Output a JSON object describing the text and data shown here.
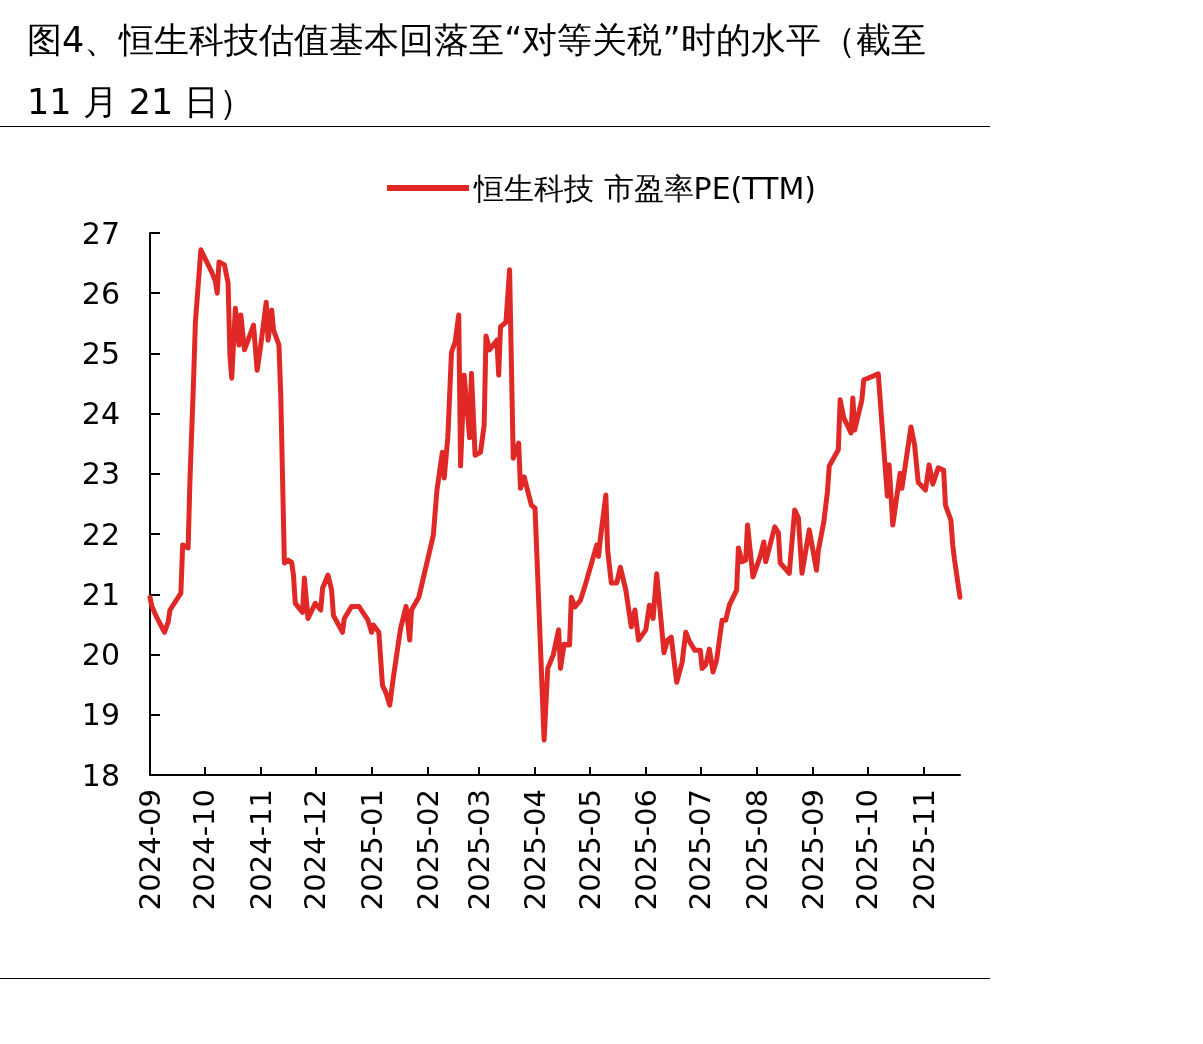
{
  "chart_data": {
    "type": "line",
    "title": "图4、恒生科技估值基本回落至“对等关税”时的水平（截至 11 月 21 日）",
    "x": [
      "2024-09-01",
      "2024-09-02",
      "2024-09-05",
      "2024-09-09",
      "2024-09-11",
      "2024-09-12",
      "2024-09-18",
      "2024-09-19",
      "2024-09-22",
      "2024-09-23",
      "2024-09-25",
      "2024-09-26",
      "2024-09-29",
      "2024-10-05",
      "2024-10-07",
      "2024-10-08",
      "2024-10-09",
      "2024-10-12",
      "2024-10-14",
      "2024-10-15",
      "2024-10-16",
      "2024-10-18",
      "2024-10-20",
      "2024-10-21",
      "2024-10-23",
      "2024-10-25",
      "2024-10-28",
      "2024-10-30",
      "2024-11-01",
      "2024-11-04",
      "2024-11-05",
      "2024-11-07",
      "2024-11-08",
      "2024-11-11",
      "2024-11-12",
      "2024-11-14",
      "2024-11-16",
      "2024-11-18",
      "2024-11-19",
      "2024-11-20",
      "2024-11-24",
      "2024-11-25",
      "2024-11-27",
      "2024-12-01",
      "2024-12-04",
      "2024-12-05",
      "2024-12-08",
      "2024-12-10",
      "2024-12-11",
      "2024-12-16",
      "2024-12-17",
      "2024-12-21",
      "2024-12-25",
      "2024-12-30",
      "2025-01-01",
      "2025-01-02",
      "2025-01-05",
      "2025-01-07",
      "2025-01-09",
      "2025-01-11",
      "2025-01-13",
      "2025-01-17",
      "2025-01-20",
      "2025-01-22",
      "2025-01-23",
      "2025-01-27",
      "2025-02-04",
      "2025-02-06",
      "2025-02-09",
      "2025-02-10",
      "2025-02-12",
      "2025-02-14",
      "2025-02-16",
      "2025-02-18",
      "2025-02-19",
      "2025-02-21",
      "2025-02-24",
      "2025-02-25",
      "2025-02-27",
      "2025-03-02",
      "2025-03-04",
      "2025-03-05",
      "2025-03-07",
      "2025-03-11",
      "2025-03-12",
      "2025-03-13",
      "2025-03-16",
      "2025-03-18",
      "2025-03-20",
      "2025-03-23",
      "2025-03-24",
      "2025-03-26",
      "2025-03-30",
      "2025-04-01",
      "2025-04-06",
      "2025-04-08",
      "2025-04-11",
      "2025-04-14",
      "2025-04-15",
      "2025-04-17",
      "2025-04-20",
      "2025-04-21",
      "2025-04-23",
      "2025-04-26",
      "2025-04-29",
      "2025-05-05",
      "2025-05-06",
      "2025-05-07",
      "2025-05-10",
      "2025-05-11",
      "2025-05-13",
      "2025-05-16",
      "2025-05-18",
      "2025-05-21",
      "2025-05-24",
      "2025-05-26",
      "2025-05-28",
      "2025-06-01",
      "2025-06-03",
      "2025-06-05",
      "2025-06-07",
      "2025-06-09",
      "2025-06-11",
      "2025-06-13",
      "2025-06-15",
      "2025-06-18",
      "2025-06-21",
      "2025-06-23",
      "2025-06-25",
      "2025-06-28",
      "2025-07-01",
      "2025-07-02",
      "2025-07-04",
      "2025-07-06",
      "2025-07-08",
      "2025-07-10",
      "2025-07-13",
      "2025-07-15",
      "2025-07-17",
      "2025-07-21",
      "2025-07-22",
      "2025-07-24",
      "2025-07-26",
      "2025-07-27",
      "2025-07-30",
      "2025-08-03",
      "2025-08-05",
      "2025-08-06",
      "2025-08-11",
      "2025-08-13",
      "2025-08-14",
      "2025-08-19",
      "2025-08-22",
      "2025-08-24",
      "2025-08-26",
      "2025-08-30",
      "2025-09-03",
      "2025-09-04",
      "2025-09-07",
      "2025-09-09",
      "2025-09-10",
      "2025-09-15",
      "2025-09-16",
      "2025-09-18",
      "2025-09-22",
      "2025-09-23",
      "2025-09-24",
      "2025-09-28",
      "2025-09-29",
      "2025-10-07",
      "2025-10-09",
      "2025-10-12",
      "2025-10-13",
      "2025-10-15",
      "2025-10-19",
      "2025-10-20",
      "2025-10-25",
      "2025-10-27",
      "2025-10-29",
      "2025-11-02",
      "2025-11-04",
      "2025-11-06",
      "2025-11-09",
      "2025-11-12",
      "2025-11-13",
      "2025-11-16",
      "2025-11-17",
      "2025-11-18",
      "2025-11-21"
    ],
    "series": [
      {
        "name": "恒生科技 市盈率PE(TTM)",
        "color": "#e02826",
        "values": [
          20.95,
          20.8,
          20.6,
          20.37,
          20.54,
          20.74,
          21.02,
          21.82,
          21.77,
          22.9,
          24.56,
          25.52,
          26.72,
          26.35,
          26.2,
          26.0,
          26.52,
          26.47,
          26.17,
          24.97,
          24.59,
          25.75,
          25.14,
          25.64,
          25.06,
          25.22,
          25.47,
          24.72,
          25.14,
          25.85,
          25.22,
          25.72,
          25.39,
          25.14,
          24.31,
          21.52,
          21.57,
          21.53,
          21.32,
          20.85,
          20.7,
          21.27,
          20.6,
          20.85,
          20.74,
          21.1,
          21.32,
          21.07,
          20.65,
          20.37,
          20.6,
          20.8,
          20.8,
          20.57,
          20.37,
          20.49,
          20.37,
          19.49,
          19.36,
          19.16,
          19.62,
          20.44,
          20.8,
          20.24,
          20.74,
          20.95,
          21.98,
          22.73,
          23.36,
          22.93,
          23.61,
          25.02,
          25.19,
          25.64,
          23.13,
          24.64,
          23.6,
          24.67,
          23.31,
          23.36,
          23.81,
          25.29,
          25.06,
          25.22,
          24.64,
          25.44,
          25.52,
          26.39,
          23.26,
          23.51,
          22.76,
          22.95,
          22.48,
          22.43,
          18.58,
          19.77,
          19.99,
          20.41,
          19.77,
          20.17,
          20.16,
          20.95,
          20.79,
          20.9,
          21.19,
          21.82,
          21.63,
          21.93,
          22.65,
          21.73,
          21.19,
          21.19,
          21.45,
          21.07,
          20.46,
          20.74,
          20.24,
          20.41,
          20.82,
          20.6,
          21.34,
          20.69,
          20.03,
          20.24,
          20.29,
          19.54,
          19.87,
          20.37,
          20.22,
          20.07,
          20.07,
          19.77,
          19.83,
          20.09,
          19.71,
          19.91,
          20.57,
          20.57,
          20.82,
          21.07,
          21.77,
          21.54,
          21.57,
          22.15,
          21.29,
          21.63,
          21.87,
          21.54,
          22.12,
          22.02,
          21.52,
          21.35,
          22.4,
          22.27,
          21.35,
          22.07,
          21.4,
          21.73,
          22.2,
          22.7,
          23.13,
          23.4,
          24.23,
          23.93,
          23.68,
          24.26,
          23.73,
          24.23,
          24.56,
          24.66,
          23.84,
          22.63,
          23.15,
          22.15,
          23.01,
          22.76,
          23.78,
          23.48,
          22.86,
          22.73,
          23.15,
          22.83,
          23.1,
          23.06,
          22.48,
          22.23,
          21.82,
          21.57,
          20.95
        ]
      }
    ],
    "xlim": [
      "2024-09-01",
      "2025-11-21"
    ],
    "xticks": [
      {
        "value": "2024-09-01",
        "label": "2024-09"
      },
      {
        "value": "2024-10-01",
        "label": "2024-10"
      },
      {
        "value": "2024-11-01",
        "label": "2024-11"
      },
      {
        "value": "2024-12-01",
        "label": "2024-12"
      },
      {
        "value": "2025-01-01",
        "label": "2025-01"
      },
      {
        "value": "2025-02-01",
        "label": "2025-02"
      },
      {
        "value": "2025-03-01",
        "label": "2025-03"
      },
      {
        "value": "2025-04-01",
        "label": "2025-04"
      },
      {
        "value": "2025-05-01",
        "label": "2025-05"
      },
      {
        "value": "2025-06-01",
        "label": "2025-06"
      },
      {
        "value": "2025-07-01",
        "label": "2025-07"
      },
      {
        "value": "2025-08-01",
        "label": "2025-08"
      },
      {
        "value": "2025-09-01",
        "label": "2025-09"
      },
      {
        "value": "2025-10-01",
        "label": "2025-10"
      },
      {
        "value": "2025-11-01",
        "label": "2025-11"
      }
    ],
    "ylim": [
      18,
      27
    ],
    "yticks": [
      18,
      19,
      20,
      21,
      22,
      23,
      24,
      25,
      26,
      27
    ],
    "grid": false,
    "legend": "top",
    "marker": "none",
    "line_style": "solid"
  }
}
